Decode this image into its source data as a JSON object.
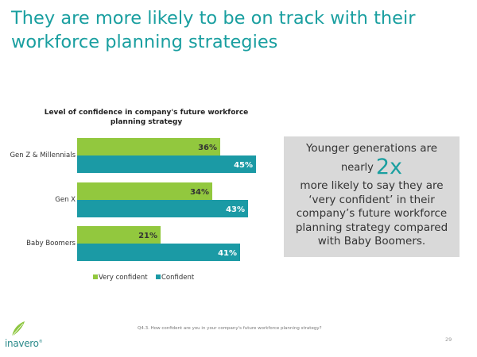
{
  "slide": {
    "title": "They are more likely to be on track with their workforce planning strategies"
  },
  "chart_data": {
    "type": "bar",
    "orientation": "horizontal",
    "title": "Level of confidence in company's future workforce planning strategy",
    "categories": [
      "Gen Z & Millennials",
      "Gen X",
      "Baby Boomers"
    ],
    "series": [
      {
        "name": "Very confident",
        "values": [
          36,
          34,
          21
        ],
        "labels": [
          "36%",
          "34%",
          "21%"
        ],
        "color": "#92c83e"
      },
      {
        "name": "Confident",
        "values": [
          45,
          43,
          41
        ],
        "labels": [
          "45%",
          "43%",
          "41%"
        ],
        "color": "#1b9aa5"
      }
    ],
    "xlim": [
      0,
      100
    ],
    "xlabel": "",
    "ylabel": "",
    "legend": "bottom"
  },
  "callout": {
    "line1": "Younger generations are",
    "nearly": "nearly",
    "emphasis": "2x",
    "line3": "more likely to say they are ‘very confident’ in their company’s future workforce planning strategy compared with Baby Boomers."
  },
  "footnote": "Q4.3. How confident are you in your company's future workforce planning strategy?",
  "page_number": "29",
  "logo": {
    "text": "inavero",
    "mark": "®"
  }
}
